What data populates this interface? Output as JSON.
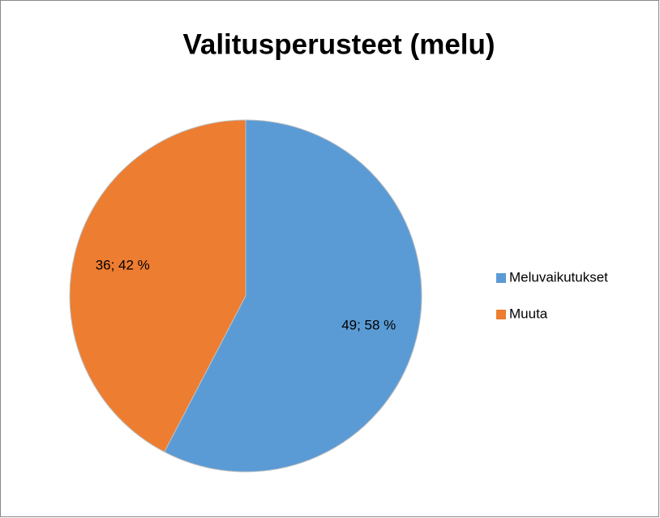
{
  "chart_data": {
    "type": "pie",
    "title": "Valitusperusteet (melu)",
    "categories": [
      "Meluvaikutukset",
      "Muuta"
    ],
    "values": [
      49,
      36
    ],
    "value_labels": [
      "49; 58 %",
      "36; 42 %"
    ],
    "colors": [
      "#5b9bd5",
      "#ed7d31"
    ],
    "legend": "right"
  }
}
